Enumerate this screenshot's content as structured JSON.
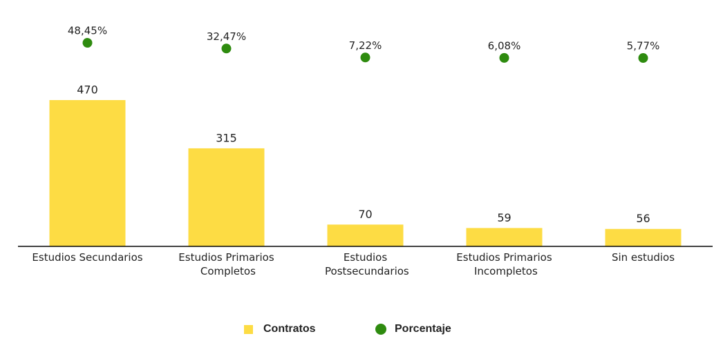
{
  "chart_data": {
    "type": "bar",
    "categories": [
      "Estudios Secundarios",
      "Estudios Primarios Completos",
      "Estudios Postsecundarios",
      "Estudios Primarios Incompletos",
      "Sin estudios"
    ],
    "series": [
      {
        "name": "Contratos",
        "type": "bar",
        "color": "#fddc44",
        "values": [
          470,
          315,
          70,
          59,
          56
        ]
      },
      {
        "name": "Porcentaje",
        "type": "scatter",
        "axis": "y2",
        "color": "#2e8b0f",
        "values": [
          48.45,
          32.47,
          7.22,
          6.08,
          5.77
        ],
        "value_labels": [
          "48,45%",
          "32,47%",
          "7,22%",
          "6,08%",
          "5,77%"
        ]
      }
    ],
    "ylim": [
      0,
      500
    ],
    "y2lim": [
      0,
      100
    ],
    "legend": "bottom"
  }
}
